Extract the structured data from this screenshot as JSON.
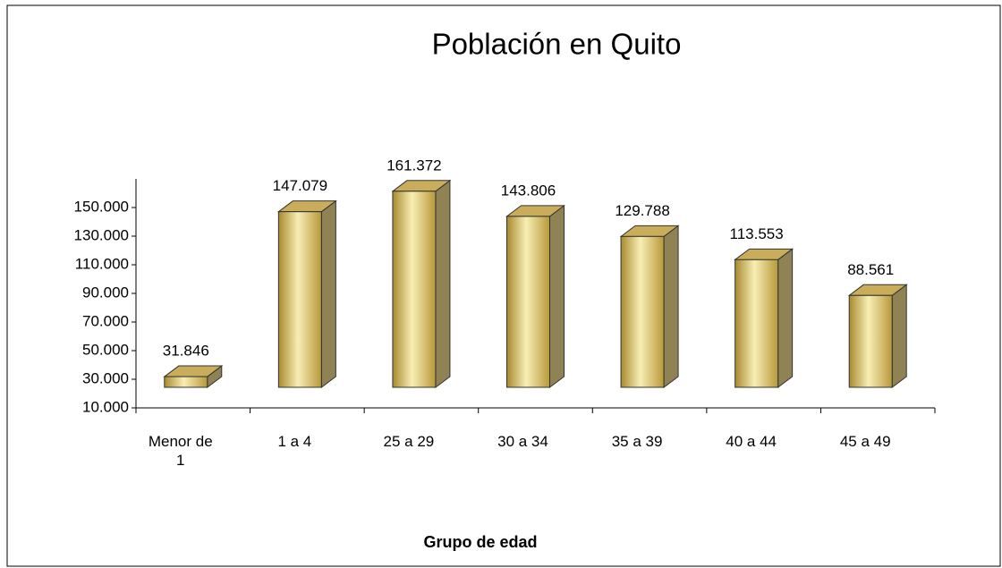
{
  "chart_data": {
    "type": "bar3d",
    "title": "Población en Quito",
    "x_label": "Grupo de edad",
    "categories": [
      "Menor de 1",
      "1 a 4",
      "25 a 29",
      "30 a 34",
      "35 a 39",
      "40 a 44",
      "45 a 49"
    ],
    "values": [
      31846,
      147079,
      161372,
      143806,
      129788,
      113553,
      88561
    ],
    "value_labels": [
      "31.846",
      "147.079",
      "161.372",
      "143.806",
      "129.788",
      "113.553",
      "88.561"
    ],
    "color": "#d9c06a",
    "ylim": [
      10000,
      170000
    ],
    "yticks": [
      {
        "value": 10000,
        "label": "10.000"
      },
      {
        "value": 30000,
        "label": "30.000"
      },
      {
        "value": 50000,
        "label": "50.000"
      },
      {
        "value": 70000,
        "label": "70.000"
      },
      {
        "value": 90000,
        "label": "90.000"
      },
      {
        "value": 110000,
        "label": "110.000"
      },
      {
        "value": 130000,
        "label": "130.000"
      },
      {
        "value": 150000,
        "label": "150.000"
      }
    ],
    "grid": false
  }
}
